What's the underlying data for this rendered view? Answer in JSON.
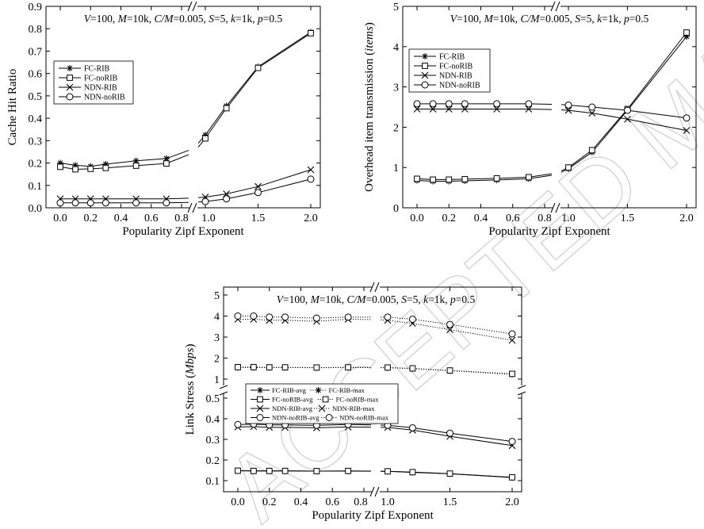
{
  "watermark": "ACCEPTED MANUSCRIPT",
  "annotation": {
    "parts": [
      {
        "t": "V",
        "i": true
      },
      {
        "t": "=100, ",
        "i": false
      },
      {
        "t": "M",
        "i": true
      },
      {
        "t": "=10k, ",
        "i": false
      },
      {
        "t": "C/M",
        "i": true
      },
      {
        "t": "=0.005, ",
        "i": false
      },
      {
        "t": "S",
        "i": true
      },
      {
        "t": "=5, ",
        "i": false
      },
      {
        "t": "k",
        "i": true
      },
      {
        "t": "=1k, ",
        "i": false
      },
      {
        "t": "p",
        "i": true
      },
      {
        "t": "=0.5",
        "i": false
      }
    ]
  },
  "chart_data": [
    {
      "type": "line",
      "xlabel": "Popularity Zipf Exponent",
      "ylabel": "Cache Hit Ratio",
      "x": [
        0.0,
        0.1,
        0.2,
        0.3,
        0.5,
        0.7,
        1.0,
        1.2,
        1.5,
        2.0
      ],
      "x_broken_axis": true,
      "xticks_left": [
        "0.0",
        "0.2",
        "0.4",
        "0.6",
        "0.8"
      ],
      "xticks_right": [
        "1.0",
        "1.5",
        "2.0"
      ],
      "yticks": [
        "0.0",
        "0.1",
        "0.2",
        "0.3",
        "0.4",
        "0.5",
        "0.6",
        "0.7",
        "0.8",
        "0.9"
      ],
      "ylim": [
        0,
        0.9
      ],
      "legend_position": "middle-left",
      "series": [
        {
          "name": "FC-RIB",
          "marker": "asterisk",
          "values": [
            0.2,
            0.19,
            0.185,
            0.195,
            0.21,
            0.22,
            0.325,
            0.455,
            0.63,
            0.785
          ]
        },
        {
          "name": "FC-noRIB",
          "marker": "square",
          "values": [
            0.183,
            0.172,
            0.174,
            0.178,
            0.188,
            0.198,
            0.31,
            0.445,
            0.625,
            0.78
          ]
        },
        {
          "name": "NDN-RIB",
          "marker": "x",
          "values": [
            0.04,
            0.04,
            0.04,
            0.04,
            0.04,
            0.04,
            0.048,
            0.062,
            0.095,
            0.17
          ]
        },
        {
          "name": "NDN-noRIB",
          "marker": "circle",
          "values": [
            0.022,
            0.022,
            0.022,
            0.022,
            0.022,
            0.022,
            0.028,
            0.04,
            0.068,
            0.128
          ]
        }
      ]
    },
    {
      "type": "line",
      "xlabel": "Popularity Zipf Exponent",
      "ylabel": "Overhead item transmission (items)",
      "x": [
        0.0,
        0.1,
        0.2,
        0.3,
        0.5,
        0.7,
        1.0,
        1.2,
        1.5,
        2.0
      ],
      "x_broken_axis": true,
      "xticks_left": [
        "0.0",
        "0.2",
        "0.4",
        "0.6",
        "0.8"
      ],
      "xticks_right": [
        "1.0",
        "1.5",
        "2.0"
      ],
      "yticks": [
        "0",
        "1",
        "2",
        "3",
        "4",
        "5"
      ],
      "ylim": [
        0,
        5
      ],
      "legend_position": "top-left",
      "series": [
        {
          "name": "FC-RIB",
          "marker": "asterisk",
          "values": [
            0.68,
            0.66,
            0.66,
            0.67,
            0.69,
            0.72,
            0.97,
            1.38,
            2.42,
            4.25
          ]
        },
        {
          "name": "FC-noRIB",
          "marker": "square",
          "values": [
            0.72,
            0.7,
            0.7,
            0.71,
            0.73,
            0.76,
            1.0,
            1.43,
            2.45,
            4.35
          ]
        },
        {
          "name": "NDN-RIB",
          "marker": "x",
          "values": [
            2.45,
            2.45,
            2.45,
            2.45,
            2.45,
            2.45,
            2.42,
            2.35,
            2.2,
            1.92
          ]
        },
        {
          "name": "NDN-noRIB",
          "marker": "circle",
          "values": [
            2.58,
            2.58,
            2.58,
            2.58,
            2.58,
            2.58,
            2.55,
            2.5,
            2.42,
            2.23
          ]
        }
      ]
    },
    {
      "type": "line",
      "xlabel": "Popularity Zipf Exponent",
      "ylabel": "Link Stress (Mbps)",
      "x": [
        0.0,
        0.1,
        0.2,
        0.3,
        0.5,
        0.7,
        1.0,
        1.2,
        1.5,
        2.0
      ],
      "x_broken_axis": true,
      "y_broken_axis": true,
      "xticks_left": [
        "0.0",
        "0.2",
        "0.4",
        "0.6",
        "0.8"
      ],
      "xticks_right": [
        "1.0",
        "1.5",
        "2.0"
      ],
      "yticks_upper": [
        "1",
        "2",
        "3",
        "4",
        "5"
      ],
      "yticks_lower": [
        "0.1",
        "0.2",
        "0.3",
        "0.4",
        "0.5"
      ],
      "legend_position": "middle-left",
      "series": [
        {
          "name": "FC-RIB-avg",
          "marker": "asterisk",
          "dotted": false,
          "values": [
            0.148,
            0.147,
            0.147,
            0.147,
            0.146,
            0.146,
            0.145,
            0.14,
            0.133,
            0.115
          ]
        },
        {
          "name": "FC-RIB-max",
          "marker": "asterisk",
          "dotted": true,
          "values": [
            1.55,
            1.55,
            1.55,
            1.55,
            1.54,
            1.55,
            1.54,
            1.5,
            1.4,
            1.23
          ]
        },
        {
          "name": "FC-noRIB-avg",
          "marker": "square",
          "dotted": false,
          "values": [
            0.148,
            0.147,
            0.147,
            0.147,
            0.146,
            0.147,
            0.145,
            0.141,
            0.134,
            0.116
          ]
        },
        {
          "name": "FC-noRIB-max",
          "marker": "square",
          "dotted": true,
          "values": [
            1.57,
            1.57,
            1.56,
            1.56,
            1.55,
            1.56,
            1.55,
            1.51,
            1.41,
            1.25
          ]
        },
        {
          "name": "NDN-RIB-avg",
          "marker": "x",
          "dotted": false,
          "values": [
            0.36,
            0.362,
            0.358,
            0.358,
            0.356,
            0.36,
            0.358,
            0.345,
            0.315,
            0.27
          ]
        },
        {
          "name": "NDN-RIB-max",
          "marker": "x",
          "dotted": true,
          "values": [
            3.85,
            3.85,
            3.8,
            3.8,
            3.75,
            3.85,
            3.8,
            3.65,
            3.35,
            2.85
          ]
        },
        {
          "name": "NDN-noRIB-avg",
          "marker": "circle",
          "dotted": false,
          "values": [
            0.372,
            0.374,
            0.37,
            0.37,
            0.368,
            0.372,
            0.368,
            0.356,
            0.33,
            0.29
          ]
        },
        {
          "name": "NDN-noRIB-max",
          "marker": "circle",
          "dotted": true,
          "values": [
            4.0,
            4.0,
            3.95,
            3.95,
            3.9,
            3.95,
            3.95,
            3.85,
            3.6,
            3.15
          ]
        }
      ]
    }
  ]
}
